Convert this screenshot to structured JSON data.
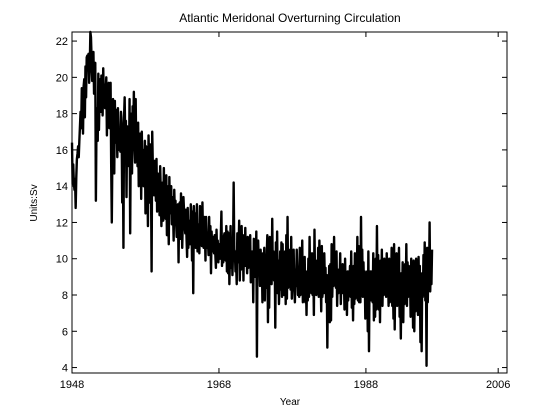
{
  "chart_data": {
    "type": "line",
    "title": "Atlantic Meridonal Overturning Circulation",
    "xlabel": "Year",
    "ylabel": "Units:Sv",
    "xlim": [
      1948,
      2007.2
    ],
    "ylim": [
      3.7,
      22.5
    ],
    "xticks": [
      1948,
      1968,
      1988,
      2006
    ],
    "xtick_labels": [
      "1948",
      "1968",
      "1988",
      "2006"
    ],
    "yticks": [
      4,
      6,
      8,
      10,
      12,
      14,
      16,
      18,
      20,
      22
    ],
    "ytick_labels": [
      "4",
      "6",
      "8",
      "10",
      "12",
      "14",
      "16",
      "18",
      "20",
      "22"
    ],
    "grid": false,
    "sampling": "monthly",
    "series": [
      {
        "color": "#000000",
        "x_start": 1948,
        "step_months": 1,
        "values": [
          16.4,
          14.1,
          15.2,
          14.2,
          13.8,
          14.4,
          12.8,
          14.5,
          15.5,
          15.8,
          16.2,
          15.6,
          16.5,
          17.3,
          18.1,
          17.2,
          19.4,
          18.3,
          16.9,
          19.5,
          19.9,
          17.8,
          20.6,
          18.9,
          21.1,
          21.2,
          20.4,
          21.3,
          19.7,
          20.6,
          22.5,
          22.2,
          21.0,
          19.8,
          20.4,
          21.4,
          19.1,
          19.4,
          20.8,
          13.2,
          17.4,
          18.3,
          16.5,
          20.2,
          17.1,
          19.0,
          19.9,
          18.1,
          20.1,
          19.8,
          17.9,
          20.5,
          18.8,
          19.6,
          18.3,
          19.2,
          20.0,
          16.8,
          19.1,
          18.7,
          19.7,
          17.2,
          17.8,
          19.7,
          15.2,
          12.0,
          16.0,
          18.8,
          17.0,
          14.7,
          18.7,
          16.4,
          18.2,
          17.8,
          15.6,
          18.3,
          16.8,
          16.0,
          17.1,
          15.9,
          18.1,
          17.5,
          13.1,
          16.4,
          10.6,
          17.8,
          18.9,
          16.4,
          17.6,
          13.4,
          17.3,
          16.9,
          16.7,
          15.1,
          18.8,
          11.4,
          16.7,
          18.0,
          14.7,
          18.4,
          16.6,
          19.2,
          16.2,
          15.3,
          18.8,
          15.7,
          16.9,
          15.1,
          17.5,
          14.0,
          16.9,
          15.5,
          16.9,
          13.3,
          17.0,
          14.6,
          16.0,
          14.0,
          14.2,
          16.5,
          12.5,
          16.2,
          15.2,
          14.4,
          11.8,
          16.8,
          15.0,
          13.1,
          16.3,
          14.3,
          9.3,
          17.0,
          15.1,
          13.6,
          13.5,
          15.4,
          14.9,
          13.2,
          15.5,
          12.6,
          14.7,
          13.9,
          14.0,
          12.4,
          15.1,
          13.6,
          11.8,
          13.7,
          14.2,
          12.1,
          15.0,
          13.0,
          13.6,
          12.2,
          14.6,
          11.3,
          14.0,
          13.2,
          10.8,
          14.5,
          12.5,
          13.8,
          14.0,
          11.9,
          13.4,
          12.7,
          11.0,
          13.8,
          12.5,
          13.2,
          12.0,
          11.2,
          12.7,
          13.0,
          9.8,
          12.9,
          13.1,
          11.1,
          13.6,
          12.4,
          10.6,
          12.2,
          13.4,
          12.6,
          11.8,
          11.4,
          12.7,
          11.2,
          10.1,
          12.8,
          10.6,
          12.1,
          11.4,
          10.8,
          13.0,
          12.3,
          9.9,
          12.6,
          8.1,
          12.9,
          11.1,
          12.5,
          10.6,
          11.6,
          13.0,
          10.4,
          11.6,
          11.9,
          10.3,
          12.9,
          11.1,
          12.4,
          10.7,
          13.1,
          11.1,
          10.6,
          12.3,
          11.5,
          9.9,
          12.3,
          11.1,
          10.6,
          11.0,
          10.2,
          12.3,
          10.6,
          11.8,
          9.2,
          11.5,
          10.4,
          11.2,
          10.7,
          10.3,
          11.3,
          10.3,
          9.5,
          11.6,
          10.4,
          11.0,
          9.8,
          10.8,
          10.5,
          10.0,
          11.2,
          12.6,
          9.6,
          10.9,
          9.8,
          11.2,
          11.4,
          10.3,
          9.9,
          11.8,
          9.3,
          11.5,
          9.2,
          11.4,
          8.6,
          10.3,
          11.8,
          9.5,
          10.7,
          9.1,
          10.4,
          14.2,
          10.5,
          10.4,
          9.3,
          9.8,
          8.6,
          11.4,
          9.8,
          10.3,
          12.1,
          8.8,
          10.5,
          9.4,
          11.8,
          10.2,
          11.1,
          8.8,
          11.3,
          9.6,
          11.7,
          9.6,
          10.8,
          9.2,
          11.2,
          9.5,
          10.4,
          9.6,
          11.3,
          8.7,
          10.4,
          9.9,
          10.4,
          7.6,
          11.1,
          9.0,
          10.5,
          9.4,
          11.5,
          4.6,
          10.6,
          11.0,
          9.7,
          10.1,
          8.5,
          10.5,
          9.7,
          10.0,
          7.6,
          10.3,
          9.3,
          10.6,
          7.7,
          10.1,
          8.4,
          10.2,
          11.3,
          6.5,
          10.9,
          7.3,
          11.2,
          9.3,
          10.6,
          8.6,
          12.2,
          9.0,
          10.4,
          8.8,
          10.2,
          6.2,
          10.9,
          8.3,
          11.5,
          8.1,
          9.9,
          7.5,
          8.6,
          10.4,
          8.3,
          10.9,
          7.9,
          10.8,
          8.0,
          9.5,
          8.0,
          10.4,
          7.5,
          11.3,
          7.8,
          12.3,
          8.4,
          10.5,
          8.5,
          9.8,
          8.3,
          11.2,
          7.8,
          10.2,
          8.4,
          10.5,
          8.3,
          7.6,
          9.4,
          8.5,
          10.5,
          9.2,
          8.0,
          8.8,
          7.9,
          10.6,
          8.0,
          9.9,
          8.5,
          11.0,
          7.6,
          9.7,
          8.4,
          10.1,
          7.6,
          8.8,
          6.9,
          9.3,
          7.7,
          10.0,
          7.9,
          11.2,
          8.5,
          9.7,
          8.1,
          10.3,
          8.0,
          9.8,
          6.9,
          11.6,
          8.6,
          9.9,
          8.0,
          9.5,
          8.5,
          10.6,
          7.9,
          11.0,
          8.6,
          9.1,
          7.1,
          10.7,
          7.9,
          9.5,
          8.1,
          10.3,
          8.7,
          9.5,
          7.6,
          9.1,
          5.1,
          9.0,
          7.8,
          9.6,
          6.5,
          9.7,
          6.6,
          10.8,
          7.9,
          9.6,
          8.5,
          11.2,
          8.6,
          9.4,
          8.4,
          10.4,
          7.4,
          9.4,
          8.1,
          9.2,
          8.7,
          10.3,
          7.5,
          9.1,
          8.1,
          9.7,
          8.8,
          9.1,
          7.2,
          10.0,
          7.5,
          9.0,
          6.9,
          9.3,
          7.7,
          9.3,
          8.4,
          9.6,
          7.9,
          10.4,
          7.3,
          8.8,
          6.6,
          9.6,
          7.5,
          10.3,
          7.8,
          9.6,
          8.3,
          11.2,
          7.7,
          10.7,
          7.6,
          9.1,
          7.6,
          12.3,
          8.0,
          10.5,
          7.9,
          9.8,
          8.1,
          9.3,
          6.7,
          9.2,
          7.8,
          9.3,
          6.0,
          10.4,
          4.9,
          9.3,
          7.9,
          9.3,
          7.7,
          9.3,
          7.6,
          10.3,
          6.6,
          9.0,
          6.8,
          10.0,
          7.2,
          11.8,
          8.1,
          10.2,
          7.2,
          9.5,
          6.5,
          9.9,
          8.1,
          10.5,
          7.4,
          9.2,
          8.0,
          10.0,
          8.8,
          9.4,
          7.9,
          10.3,
          8.2,
          9.6,
          7.4,
          10.0,
          7.6,
          9.0,
          8.1,
          10.6,
          7.4,
          9.0,
          6.7,
          10.8,
          6.1,
          9.4,
          7.8,
          10.3,
          7.4,
          9.8,
          7.7,
          10.6,
          6.8,
          8.4,
          5.6,
          9.2,
          7.7,
          9.8,
          6.5,
          9.4,
          7.5,
          9.7,
          8.1,
          10.8,
          7.4,
          9.8,
          7.9,
          9.6,
          8.3,
          9.3,
          6.8,
          10.0,
          7.4,
          8.9,
          6.2,
          9.9,
          6.0,
          8.8,
          7.1,
          10.0,
          7.4,
          9.3,
          6.9,
          10.1,
          7.3,
          9.6,
          5.4,
          8.2,
          4.9,
          9.2,
          7.9,
          10.2,
          8.1,
          10.9,
          7.7,
          9.4,
          4.1,
          10.6,
          7.6,
          9.5,
          8.6,
          12.0,
          8.2,
          9.8,
          8.6,
          10.5
        ]
      }
    ]
  }
}
